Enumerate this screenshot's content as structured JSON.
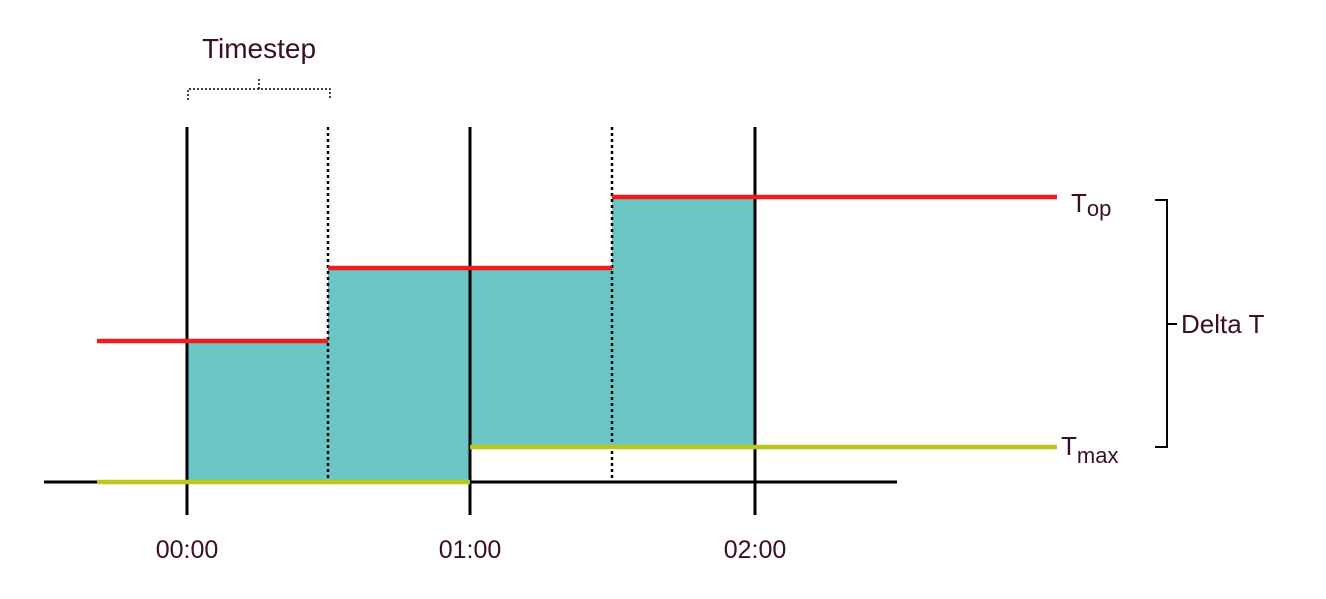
{
  "colors": {
    "fill": "#6cc5c5",
    "top_line": "#ee1c1c",
    "max_line": "#bcc51a",
    "axis": "#000000",
    "text": "#3a0f24"
  },
  "timestep_label": "Timestep",
  "time_labels": [
    "00:00",
    "01:00",
    "02:00"
  ],
  "labels": {
    "top_main": "T",
    "top_sub": "op",
    "max_main": "T",
    "max_sub": "max",
    "delta": "Delta T"
  }
}
